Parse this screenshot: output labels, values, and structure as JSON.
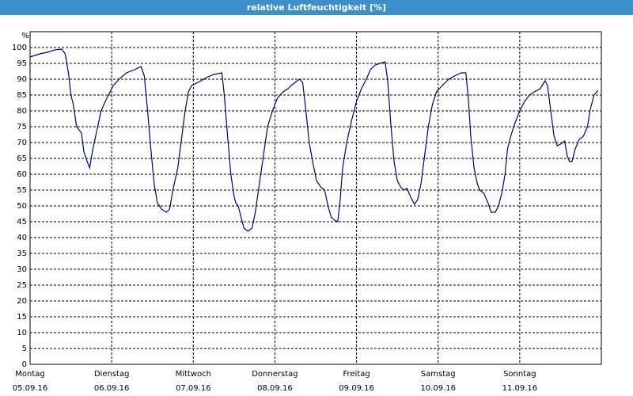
{
  "chart_data": {
    "type": "line",
    "title": "relative Luftfeuchtigkeit [%]",
    "y_label": "%",
    "xlim": [
      0,
      7
    ],
    "ylim": [
      0,
      105
    ],
    "xticks": [
      {
        "value": 0,
        "label": "Montag"
      },
      {
        "value": 1,
        "label": "Dienstag"
      },
      {
        "value": 2,
        "label": "Mittwoch"
      },
      {
        "value": 3,
        "label": "Donnerstag"
      },
      {
        "value": 4,
        "label": "Freitag"
      },
      {
        "value": 5,
        "label": "Samstag"
      },
      {
        "value": 6,
        "label": "Sonntag"
      }
    ],
    "xtick_dates": [
      "05.09.16",
      "06.09.16",
      "07.09.16",
      "08.09.16",
      "09.09.16",
      "10.09.16",
      "11.09.16"
    ],
    "yticks": [
      0,
      5,
      10,
      15,
      20,
      25,
      30,
      35,
      40,
      45,
      50,
      55,
      60,
      65,
      70,
      75,
      80,
      85,
      90,
      95,
      100
    ],
    "grid": true,
    "series": [
      {
        "color": "#00008b",
        "x": [
          0,
          0.12,
          0.21,
          0.31,
          0.39,
          0.43,
          0.47,
          0.5,
          0.53,
          0.57,
          0.6,
          0.63,
          0.66,
          0.7,
          0.73,
          0.77,
          0.82,
          0.87,
          0.94,
          1.02,
          1.09,
          1.18,
          1.28,
          1.36,
          1.4,
          1.44,
          1.48,
          1.52,
          1.56,
          1.61,
          1.67,
          1.71,
          1.75,
          1.81,
          1.85,
          1.9,
          1.94,
          1.98,
          2.06,
          2.16,
          2.25,
          2.35,
          2.38,
          2.42,
          2.46,
          2.5,
          2.52,
          2.55,
          2.58,
          2.62,
          2.67,
          2.72,
          2.76,
          2.81,
          2.86,
          2.91,
          2.97,
          3.03,
          3.1,
          3.16,
          3.2,
          3.25,
          3.3,
          3.34,
          3.38,
          3.42,
          3.47,
          3.51,
          3.56,
          3.61,
          3.65,
          3.69,
          3.73,
          3.77,
          3.8,
          3.83,
          3.88,
          3.94,
          4.0,
          4.06,
          4.12,
          4.17,
          4.23,
          4.29,
          4.35,
          4.38,
          4.42,
          4.46,
          4.5,
          4.54,
          4.58,
          4.62,
          4.66,
          4.71,
          4.75,
          4.79,
          4.83,
          4.88,
          4.93,
          4.98,
          5.05,
          5.13,
          5.2,
          5.28,
          5.34,
          5.37,
          5.4,
          5.44,
          5.48,
          5.51,
          5.56,
          5.61,
          5.65,
          5.7,
          5.74,
          5.78,
          5.82,
          5.85,
          5.89,
          5.94,
          6.0,
          6.06,
          6.12,
          6.18,
          6.25,
          6.31,
          6.34,
          6.38,
          6.42,
          6.46,
          6.5,
          6.55,
          6.58,
          6.61,
          6.64,
          6.68,
          6.73,
          6.78,
          6.83,
          6.86,
          6.91,
          6.96
        ],
        "values": [
          97,
          98,
          98.5,
          99.3,
          99.5,
          98,
          92,
          85,
          82,
          75,
          74,
          73,
          67,
          64,
          62,
          68,
          74,
          80,
          84,
          88,
          90,
          92,
          93,
          94,
          91,
          80,
          68,
          57,
          51,
          49,
          48,
          49,
          55,
          62,
          70,
          80,
          86,
          88,
          89,
          90.5,
          91.5,
          92,
          85,
          72,
          60,
          53,
          51,
          50,
          47,
          43,
          42,
          43,
          48,
          57,
          66,
          75,
          80,
          84,
          86,
          87,
          88,
          89,
          90,
          89,
          80,
          70,
          63,
          58,
          56,
          55,
          50,
          46.5,
          45.5,
          45,
          52,
          62,
          70,
          77,
          83,
          87,
          90,
          93,
          94.5,
          95,
          95.5,
          90,
          76,
          64,
          58,
          56,
          55,
          55.5,
          53,
          50.5,
          52,
          57,
          65,
          75,
          82,
          86,
          88,
          90,
          91,
          92,
          92,
          84,
          72,
          62,
          57,
          55,
          54,
          51,
          48,
          48,
          50,
          54,
          60,
          68,
          72,
          76,
          80,
          83,
          85,
          86,
          87,
          89.5,
          88,
          80,
          72,
          69,
          69.5,
          70.5,
          66,
          64,
          64,
          68,
          71,
          72,
          75,
          80,
          85,
          86.5
        ]
      }
    ]
  }
}
